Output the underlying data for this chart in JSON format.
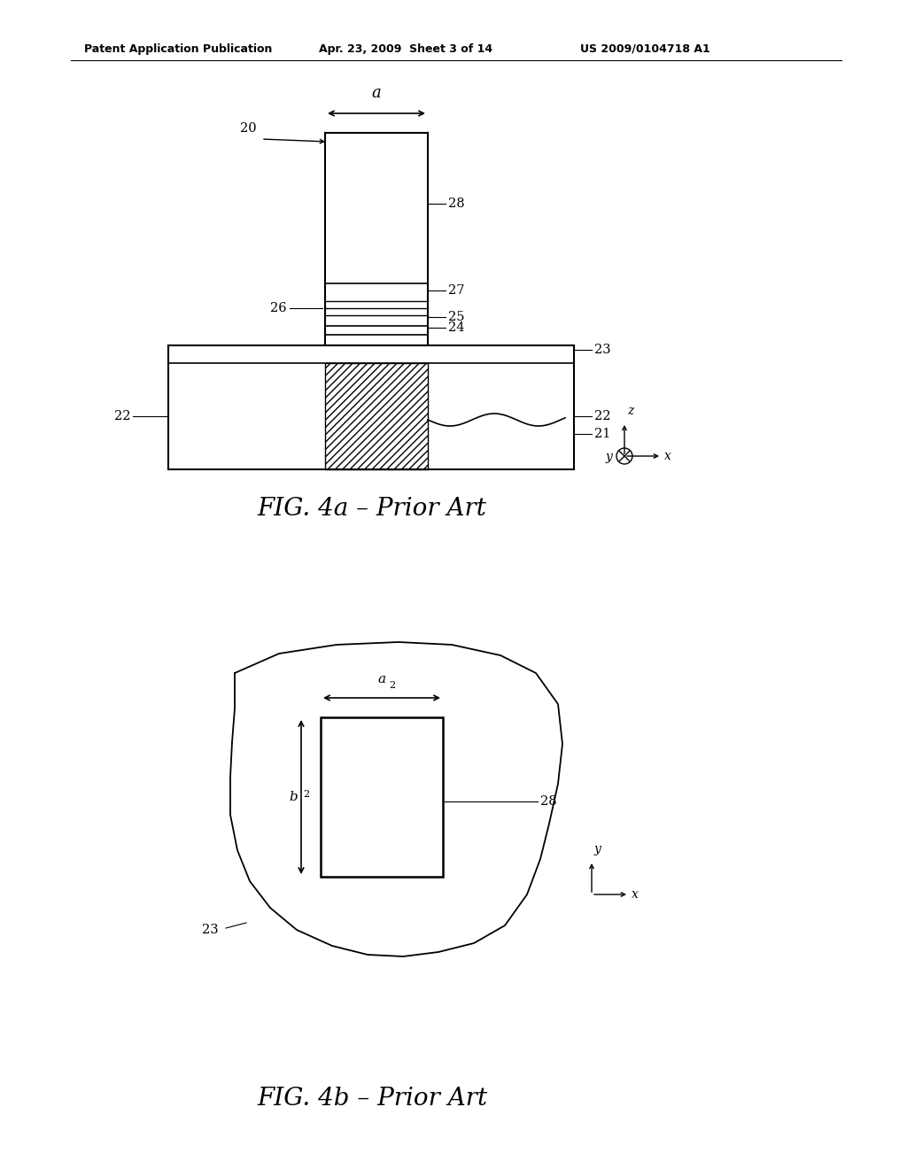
{
  "bg_color": "#ffffff",
  "header_left": "Patent Application Publication",
  "header_mid": "Apr. 23, 2009  Sheet 3 of 14",
  "header_right": "US 2009/0104718 A1",
  "fig4a_caption": "FIG. 4a – Prior Art",
  "fig4b_caption": "FIG. 4b – Prior Art",
  "fig4a": {
    "label_20": "20",
    "label_21": "21",
    "label_22": "22",
    "label_23": "23",
    "label_24": "24",
    "label_25": "25",
    "label_26": "26",
    "label_27": "27",
    "label_28": "28",
    "label_a": "a"
  },
  "fig4b": {
    "label_23": "23",
    "label_28": "28",
    "label_a2": "a",
    "label_b2": "b"
  }
}
